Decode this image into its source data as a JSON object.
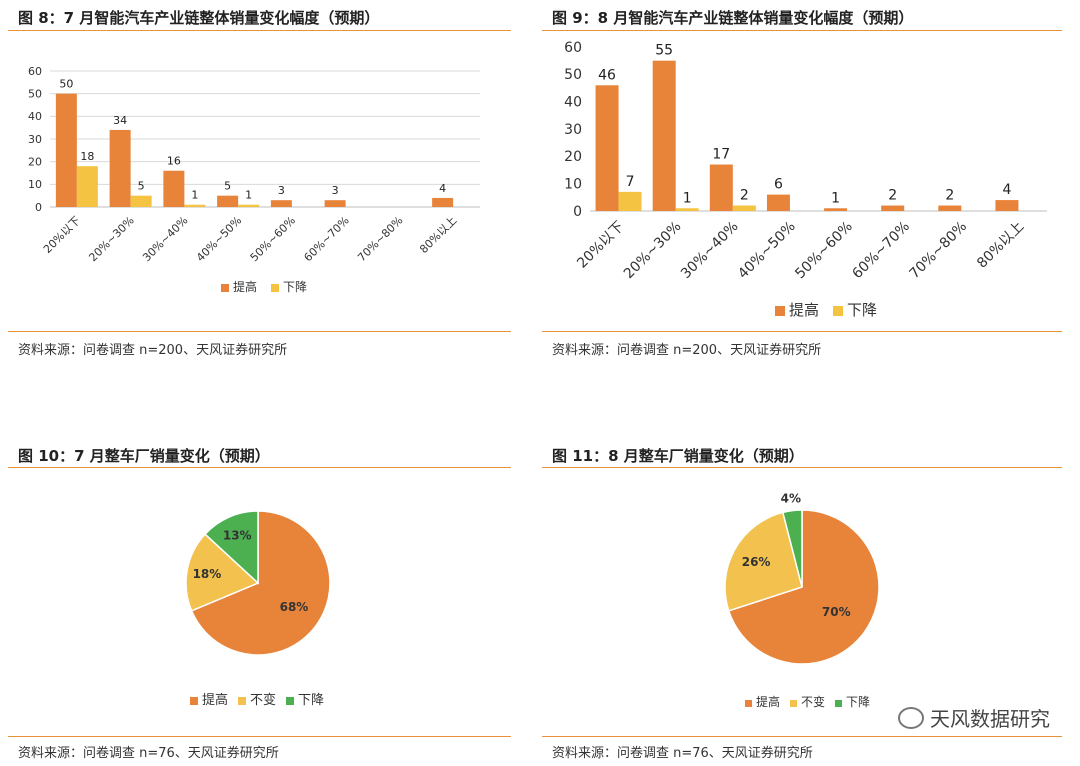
{
  "panels": [
    {
      "title": "图 8：7 月智能汽车产业链整体销量变化幅度（预期）",
      "source": "资料来源：问卷调查 n=200、天风证券研究所"
    },
    {
      "title": "图 9：8 月智能汽车产业链整体销量变化幅度（预期）",
      "source": "资料来源：问卷调查 n=200、天风证券研究所"
    },
    {
      "title": "图 10：7 月整车厂销量变化（预期）",
      "source": "资料来源：问卷调查 n=76、天风证券研究所"
    },
    {
      "title": "图 11：8 月整车厂销量变化（预期）",
      "source": "资料来源：问卷调查 n=76、天风证券研究所"
    }
  ],
  "watermark": "天风数据研究",
  "colors": {
    "up": "#e8843a",
    "down": "#f5c342",
    "flat": "#f2c14e",
    "green": "#4caf50",
    "rule": "#e8923a"
  },
  "chart_data": [
    {
      "type": "bar",
      "categories": [
        "20%以下",
        "20%~30%",
        "30%~40%",
        "40%~50%",
        "50%~60%",
        "60%~70%",
        "70%~80%",
        "80%以上"
      ],
      "series": [
        {
          "name": "提高",
          "values": [
            50,
            34,
            16,
            5,
            3,
            3,
            null,
            4
          ]
        },
        {
          "name": "下降",
          "values": [
            18,
            5,
            1,
            1,
            null,
            null,
            null,
            null
          ]
        }
      ],
      "ylim": [
        0,
        60
      ],
      "yticks": [
        0,
        10,
        20,
        30,
        40,
        50,
        60
      ],
      "legend": "bottom",
      "grid": true
    },
    {
      "type": "bar",
      "categories": [
        "20%以下",
        "20%~30%",
        "30%~40%",
        "40%~50%",
        "50%~60%",
        "60%~70%",
        "70%~80%",
        "80%以上"
      ],
      "series": [
        {
          "name": "提高",
          "values": [
            46,
            55,
            17,
            6,
            1,
            2,
            2,
            4
          ]
        },
        {
          "name": "下降",
          "values": [
            7,
            1,
            2,
            null,
            null,
            null,
            null,
            null
          ]
        }
      ],
      "ylim": [
        0,
        60
      ],
      "yticks": [
        0,
        10,
        20,
        30,
        40,
        50,
        60
      ],
      "legend": "bottom",
      "grid": false
    },
    {
      "type": "pie",
      "slices": [
        {
          "name": "提高",
          "value": 68,
          "label": "68%"
        },
        {
          "name": "不变",
          "value": 18,
          "label": "18%"
        },
        {
          "name": "下降",
          "value": 13,
          "label": "13%"
        }
      ],
      "legend": "bottom"
    },
    {
      "type": "pie",
      "slices": [
        {
          "name": "提高",
          "value": 70,
          "label": "70%"
        },
        {
          "name": "不变",
          "value": 26,
          "label": "26%"
        },
        {
          "name": "下降",
          "value": 4,
          "label": "4%"
        }
      ],
      "legend": "bottom"
    }
  ]
}
